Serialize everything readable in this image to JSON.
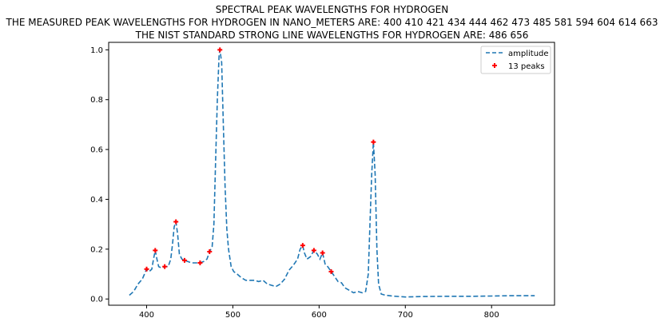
{
  "chart_data": {
    "type": "line",
    "title": [
      "SPECTRAL PEAK WAVELENGTHS FOR HYDROGEN",
      "THE MEASURED PEAK WAVELENGTHS FOR HYDROGEN IN NANO_METERS ARE: 400 410 421 434 444 462 473 485 581 594 604 614 663",
      "THE NIST STANDARD STRONG LINE WAVELENGTHS FOR HYDROGEN ARE: 486 656"
    ],
    "xlabel": "",
    "ylabel": "",
    "xlim": [
      356,
      873
    ],
    "ylim": [
      -0.025,
      1.03
    ],
    "x_ticks": [
      400,
      500,
      600,
      700,
      800
    ],
    "y_ticks": [
      0.0,
      0.2,
      0.4,
      0.6,
      0.8,
      1.0
    ],
    "x_tick_labels": [
      "400",
      "500",
      "600",
      "700",
      "800"
    ],
    "y_tick_labels": [
      "0.0",
      "0.2",
      "0.4",
      "0.6",
      "0.8",
      "1.0"
    ],
    "grid": false,
    "legend": {
      "position": "top-right",
      "entries": [
        {
          "label": "amplitude",
          "style": "dashed-line",
          "color": "#1f77b4"
        },
        {
          "label": "13 peaks",
          "style": "plus-marker",
          "color": "#ff0000"
        }
      ]
    },
    "series": [
      {
        "name": "amplitude",
        "style": "dashed",
        "color": "#1f77b4",
        "x": [
          380,
          385,
          390,
          395,
          400,
          403,
          406,
          408,
          410,
          412,
          414,
          417,
          421,
          425,
          428,
          430,
          432,
          434,
          436,
          438,
          441,
          444,
          448,
          452,
          456,
          460,
          462,
          466,
          470,
          473,
          476,
          478,
          480,
          482,
          484,
          485,
          487,
          489,
          491,
          493,
          495,
          498,
          501,
          505,
          510,
          515,
          520,
          525,
          530,
          535,
          540,
          545,
          550,
          555,
          560,
          565,
          570,
          575,
          578,
          581,
          583,
          586,
          590,
          594,
          598,
          601,
          604,
          607,
          610,
          614,
          618,
          622,
          626,
          630,
          635,
          640,
          645,
          650,
          654,
          657,
          659,
          661,
          663,
          665,
          667,
          669,
          672,
          677,
          685,
          700,
          720,
          750,
          780,
          800,
          820,
          850
        ],
        "y": [
          0.015,
          0.03,
          0.06,
          0.08,
          0.12,
          0.11,
          0.12,
          0.16,
          0.195,
          0.16,
          0.13,
          0.125,
          0.13,
          0.13,
          0.16,
          0.22,
          0.29,
          0.31,
          0.26,
          0.18,
          0.16,
          0.155,
          0.15,
          0.145,
          0.145,
          0.145,
          0.145,
          0.15,
          0.16,
          0.19,
          0.21,
          0.3,
          0.55,
          0.8,
          0.98,
          1.0,
          0.95,
          0.7,
          0.45,
          0.28,
          0.2,
          0.13,
          0.11,
          0.1,
          0.085,
          0.075,
          0.075,
          0.075,
          0.07,
          0.075,
          0.06,
          0.055,
          0.05,
          0.06,
          0.08,
          0.115,
          0.135,
          0.16,
          0.2,
          0.215,
          0.185,
          0.16,
          0.17,
          0.195,
          0.18,
          0.16,
          0.185,
          0.14,
          0.13,
          0.11,
          0.09,
          0.07,
          0.065,
          0.045,
          0.035,
          0.025,
          0.03,
          0.025,
          0.03,
          0.1,
          0.3,
          0.5,
          0.63,
          0.5,
          0.2,
          0.06,
          0.02,
          0.015,
          0.012,
          0.008,
          0.01,
          0.011,
          0.011,
          0.012,
          0.013,
          0.013
        ]
      },
      {
        "name": "13 peaks",
        "style": "markers",
        "color": "#ff0000",
        "x": [
          400,
          410,
          421,
          434,
          444,
          462,
          473,
          485,
          581,
          594,
          604,
          614,
          663
        ],
        "y": [
          0.12,
          0.195,
          0.13,
          0.31,
          0.155,
          0.145,
          0.19,
          1.0,
          0.215,
          0.195,
          0.185,
          0.11,
          0.63
        ]
      }
    ]
  }
}
